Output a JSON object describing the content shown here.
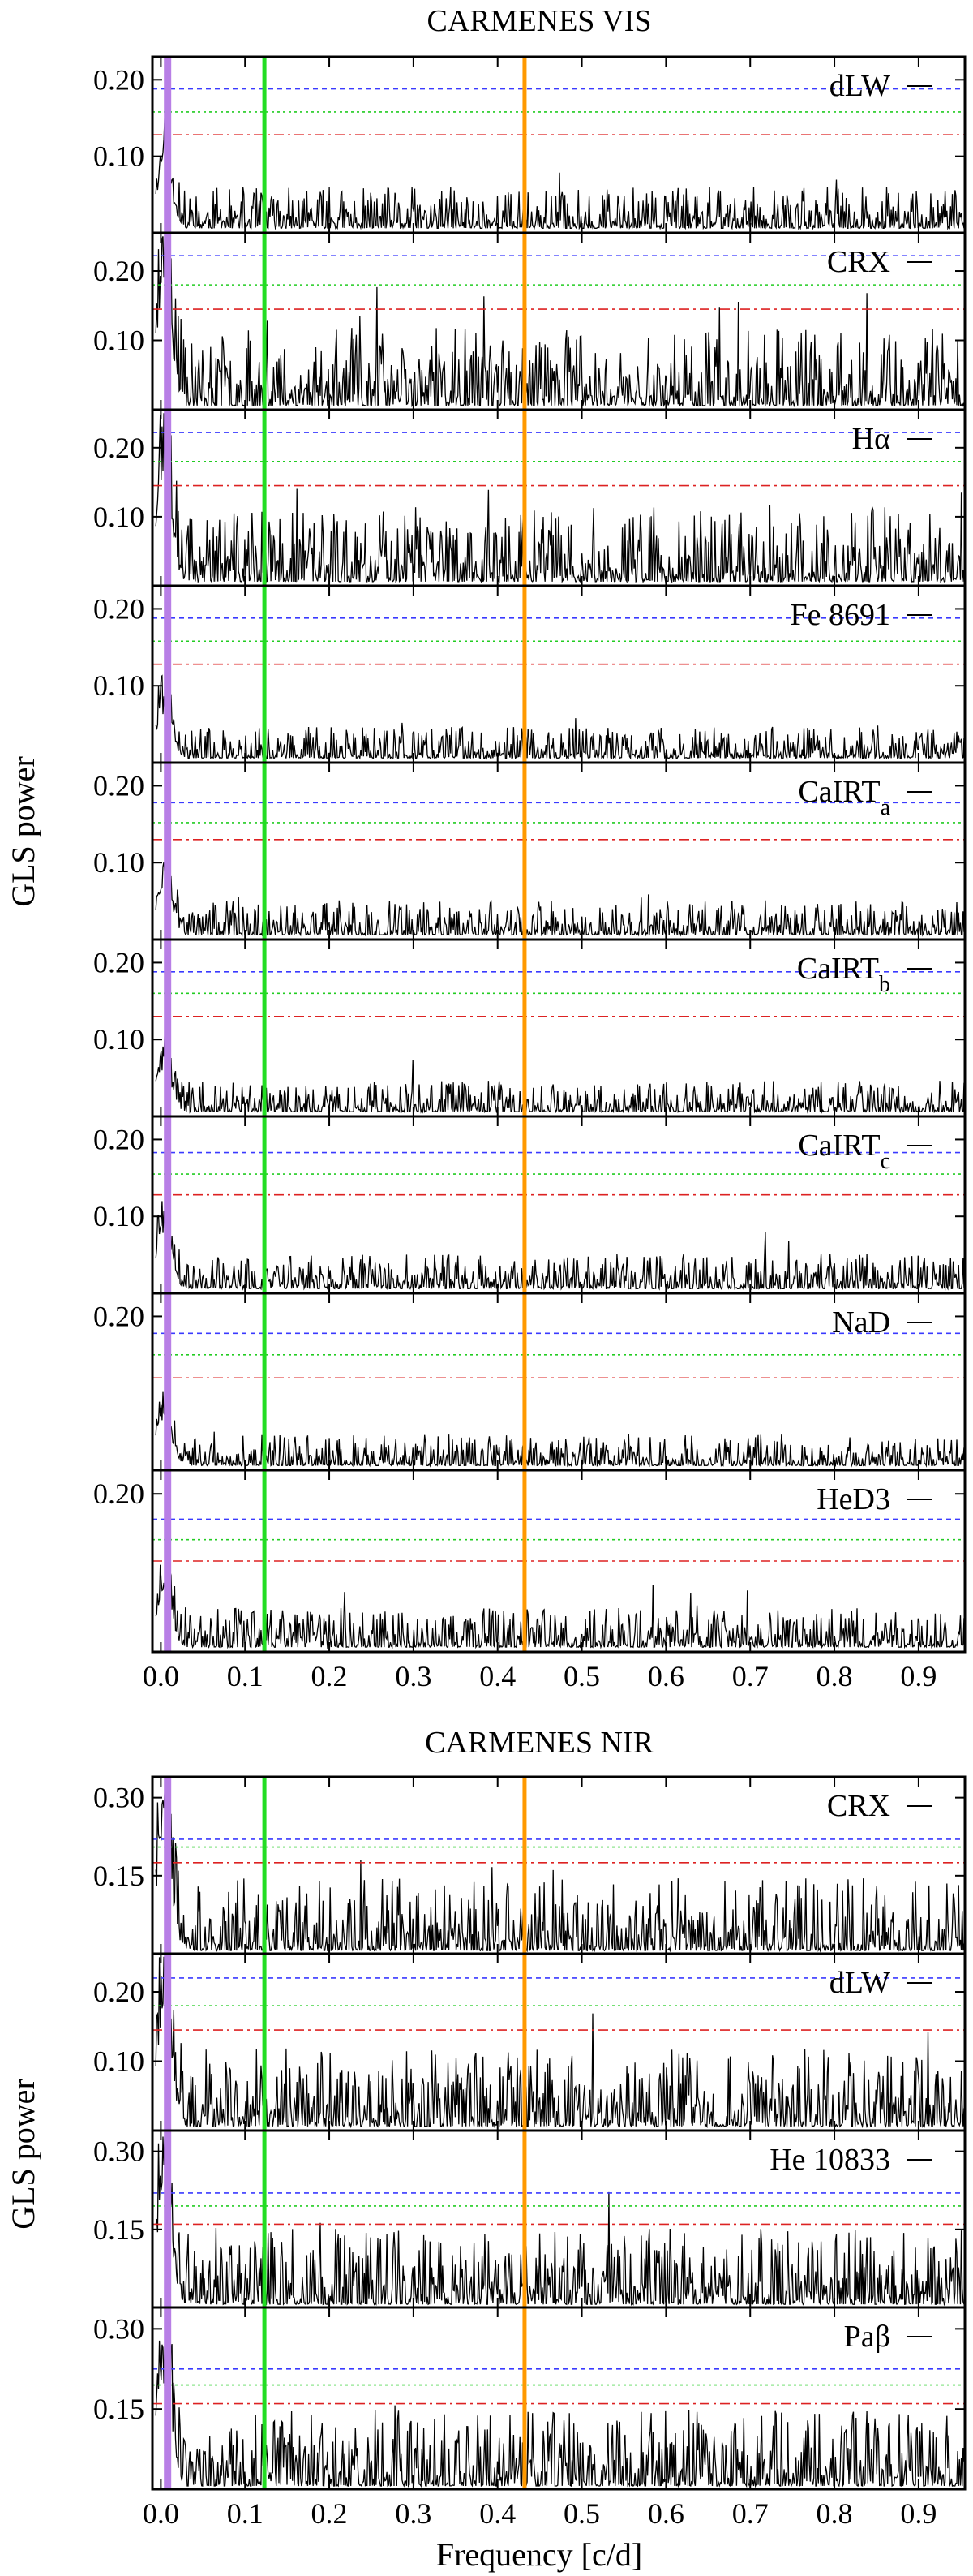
{
  "figure": {
    "groups": [
      {
        "title": "CARMENES VIS",
        "ylabel": "GLS power"
      },
      {
        "title": "CARMENES NIR",
        "ylabel": "GLS power"
      }
    ],
    "xlabel": "Frequency [c/d]",
    "xticks": [
      "0.0",
      "0.1",
      "0.2",
      "0.3",
      "0.4",
      "0.5",
      "0.6",
      "0.7",
      "0.8",
      "0.9"
    ]
  },
  "chart_data": [
    {
      "type": "line",
      "group": "CARMENES VIS",
      "label": "dLW",
      "label_sub": "",
      "ylim": [
        0,
        0.23
      ],
      "yticks": [
        "0.10",
        "0.20"
      ],
      "xlim": [
        -0.01,
        0.955
      ],
      "fap": [
        0.188,
        0.158,
        0.128
      ],
      "peak": 0.12,
      "seed": 11
    },
    {
      "type": "line",
      "group": "CARMENES VIS",
      "label": "CRX",
      "label_sub": "",
      "ylim": [
        0,
        0.255
      ],
      "yticks": [
        "0.10",
        "0.20"
      ],
      "xlim": [
        -0.01,
        0.955
      ],
      "fap": [
        0.222,
        0.18,
        0.145
      ],
      "peak": 0.25,
      "seed": 23
    },
    {
      "type": "line",
      "group": "CARMENES VIS",
      "label": "Hα",
      "label_sub": "",
      "ylim": [
        0,
        0.255
      ],
      "yticks": [
        "0.10",
        "0.20"
      ],
      "xlim": [
        -0.01,
        0.955
      ],
      "fap": [
        0.222,
        0.18,
        0.145
      ],
      "peak": 0.24,
      "seed": 37
    },
    {
      "type": "line",
      "group": "CARMENES VIS",
      "label": "Fe 8691",
      "label_sub": "",
      "ylim": [
        0,
        0.23
      ],
      "yticks": [
        "0.10",
        "0.20"
      ],
      "xlim": [
        -0.01,
        0.955
      ],
      "fap": [
        0.188,
        0.158,
        0.128
      ],
      "peak": 0.09,
      "seed": 41
    },
    {
      "type": "line",
      "group": "CARMENES VIS",
      "label": "CaIRT",
      "label_sub": "a",
      "ylim": [
        0,
        0.23
      ],
      "yticks": [
        "0.10",
        "0.20"
      ],
      "xlim": [
        -0.01,
        0.955
      ],
      "fap": [
        0.178,
        0.152,
        0.13
      ],
      "peak": 0.1,
      "seed": 53
    },
    {
      "type": "line",
      "group": "CARMENES VIS",
      "label": "CaIRT",
      "label_sub": "b",
      "ylim": [
        0,
        0.23
      ],
      "yticks": [
        "0.10",
        "0.20"
      ],
      "xlim": [
        -0.01,
        0.955
      ],
      "fap": [
        0.188,
        0.16,
        0.13
      ],
      "peak": 0.09,
      "seed": 67
    },
    {
      "type": "line",
      "group": "CARMENES VIS",
      "label": "CaIRT",
      "label_sub": "c",
      "ylim": [
        0,
        0.23
      ],
      "yticks": [
        "0.10",
        "0.20"
      ],
      "xlim": [
        -0.01,
        0.955
      ],
      "fap": [
        0.183,
        0.155,
        0.128
      ],
      "peak": 0.1,
      "seed": 71
    },
    {
      "type": "line",
      "group": "CARMENES VIS",
      "label": "NaD",
      "label_sub": "",
      "ylim": [
        0,
        0.23
      ],
      "yticks": [
        "0.20"
      ],
      "xlim": [
        -0.01,
        0.955
      ],
      "fap": [
        0.178,
        0.15,
        0.12
      ],
      "peak": 0.09,
      "seed": 83
    },
    {
      "type": "line",
      "group": "CARMENES VIS",
      "label": "HeD3",
      "label_sub": "",
      "ylim": [
        0,
        0.23
      ],
      "yticks": [
        "0.20"
      ],
      "xlim": [
        -0.01,
        0.955
      ],
      "fap": [
        0.168,
        0.142,
        0.115
      ],
      "peak": 0.11,
      "seed": 97
    },
    {
      "type": "line",
      "group": "CARMENES NIR",
      "label": "CRX",
      "label_sub": "",
      "ylim": [
        0,
        0.34
      ],
      "yticks": [
        "0.15",
        "0.30"
      ],
      "xlim": [
        -0.01,
        0.955
      ],
      "fap": [
        0.22,
        0.205,
        0.175
      ],
      "peak": 0.31,
      "seed": 101
    },
    {
      "type": "line",
      "group": "CARMENES NIR",
      "label": "dLW",
      "label_sub": "",
      "ylim": [
        0,
        0.255
      ],
      "yticks": [
        "0.10",
        "0.20"
      ],
      "xlim": [
        -0.01,
        0.955
      ],
      "fap": [
        0.22,
        0.18,
        0.145
      ],
      "peak": 0.25,
      "seed": 113
    },
    {
      "type": "line",
      "group": "CARMENES NIR",
      "label": "He 10833",
      "label_sub": "",
      "ylim": [
        0,
        0.34
      ],
      "yticks": [
        "0.15",
        "0.30"
      ],
      "xlim": [
        -0.01,
        0.955
      ],
      "fap": [
        0.22,
        0.195,
        0.16
      ],
      "peak": 0.33,
      "seed": 127
    },
    {
      "type": "line",
      "group": "CARMENES NIR",
      "label": "Paβ",
      "label_sub": "",
      "ylim": [
        0,
        0.34
      ],
      "yticks": [
        "0.15",
        "0.30"
      ],
      "xlim": [
        -0.01,
        0.955
      ],
      "fap": [
        0.225,
        0.195,
        0.16
      ],
      "peak": 0.32,
      "seed": 131
    }
  ],
  "markers": [
    {
      "x": 0.008,
      "color": "#b87fe6"
    },
    {
      "x": 0.123,
      "color": "#22dd22"
    },
    {
      "x": 0.432,
      "color": "#ff9900"
    }
  ],
  "fap_colors": [
    "#3a3aff",
    "#22cc22",
    "#dd2222"
  ]
}
